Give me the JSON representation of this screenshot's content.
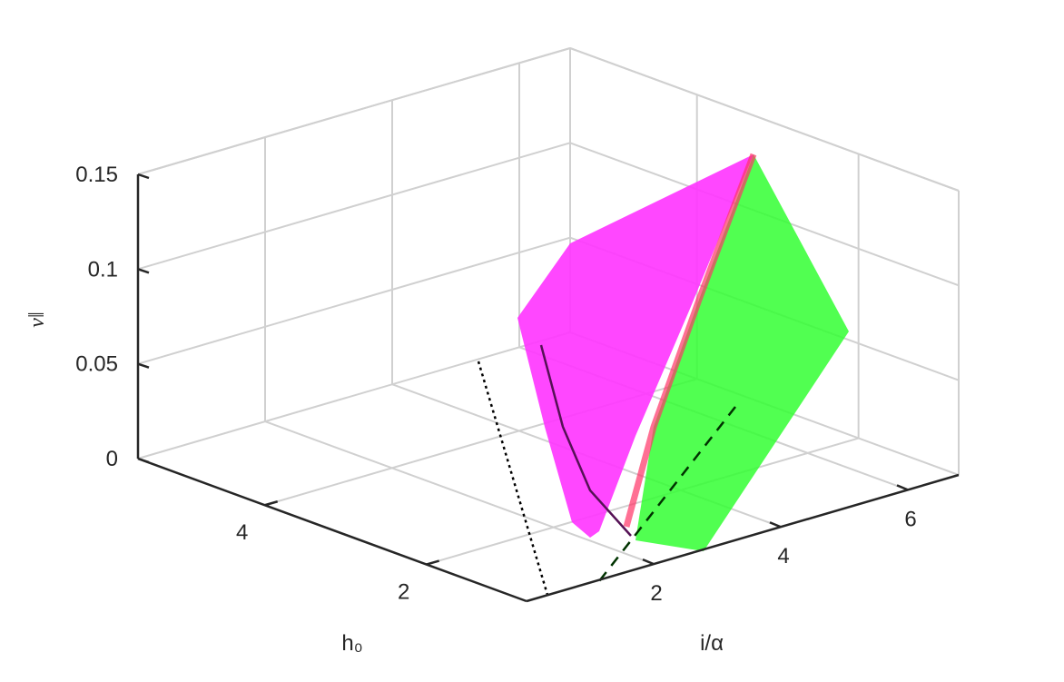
{
  "chart_data": {
    "type": "surface3d",
    "xlabel": "i/α",
    "ylabel": "h₀",
    "zlabel": "v‖",
    "xlim": [
      0,
      6.8
    ],
    "xticks": [
      2,
      4,
      6
    ],
    "ylim": [
      0.76,
      5.57
    ],
    "yticks": [
      2,
      4
    ],
    "zlim": [
      0,
      0.15
    ],
    "zticks": [
      0,
      0.05,
      0.1,
      0.15
    ],
    "grid": true
  }
}
